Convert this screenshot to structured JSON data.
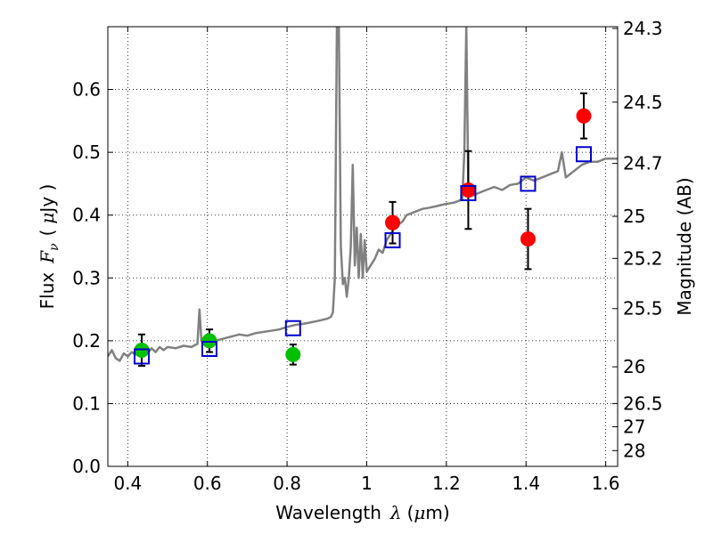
{
  "chart_data": {
    "type": "scatter",
    "xlabel": {
      "prefix": "Wavelength",
      "symbol": "λ",
      "open": "(",
      "unit_prefix": "μ",
      "unit_rest": "m)"
    },
    "ylabel": {
      "prefix": "Flux",
      "symbol": "F",
      "subscript": "ν",
      "open": "(",
      "unit_prefix": "μ",
      "unit_rest": "Jy )"
    },
    "y2label": "Magnitude (AB)",
    "xlim": [
      0.35,
      1.63
    ],
    "ylim": [
      0.0,
      0.7
    ],
    "grid": true,
    "x_ticks": [
      0.4,
      0.6,
      0.8,
      1.0,
      1.2,
      1.4,
      1.6
    ],
    "x_tick_labels": [
      "0.4",
      "0.6",
      "0.8",
      "1",
      "1.2",
      "1.4",
      "1.6"
    ],
    "y_ticks": [
      0.0,
      0.1,
      0.2,
      0.3,
      0.4,
      0.5,
      0.6
    ],
    "y_tick_labels": [
      "0.0",
      "0.1",
      "0.2",
      "0.3",
      "0.4",
      "0.5",
      "0.6"
    ],
    "y2_ticks": [
      {
        "label": "24.3",
        "flux": 0.6972
      },
      {
        "label": "24.5",
        "flux": 0.5799
      },
      {
        "label": "24.7",
        "flux": 0.4823
      },
      {
        "label": "25",
        "flux": 0.3981
      },
      {
        "label": "25.2",
        "flux": 0.3311
      },
      {
        "label": "25.5",
        "flux": 0.2512
      },
      {
        "label": "26",
        "flux": 0.1585
      },
      {
        "label": "26.5",
        "flux": 0.1
      },
      {
        "label": "27",
        "flux": 0.0631
      },
      {
        "label": "28",
        "flux": 0.0251
      }
    ],
    "series": [
      {
        "kind": "line",
        "color": "#808080",
        "x": [
          0.35,
          0.36,
          0.37,
          0.38,
          0.39,
          0.4,
          0.41,
          0.42,
          0.43,
          0.44,
          0.45,
          0.46,
          0.47,
          0.48,
          0.49,
          0.5,
          0.52,
          0.54,
          0.56,
          0.575,
          0.58,
          0.585,
          0.59,
          0.62,
          0.65,
          0.68,
          0.7,
          0.72,
          0.75,
          0.78,
          0.8,
          0.82,
          0.85,
          0.88,
          0.9,
          0.91,
          0.915,
          0.92,
          0.925,
          0.93,
          0.935,
          0.94,
          0.945,
          0.95,
          0.955,
          0.96,
          0.965,
          0.97,
          0.975,
          0.98,
          0.985,
          0.99,
          0.995,
          1.0,
          1.01,
          1.02,
          1.03,
          1.04,
          1.05,
          1.06,
          1.07,
          1.08,
          1.09,
          1.1,
          1.12,
          1.14,
          1.16,
          1.18,
          1.2,
          1.22,
          1.24,
          1.245,
          1.25,
          1.255,
          1.26,
          1.27,
          1.28,
          1.3,
          1.32,
          1.34,
          1.36,
          1.38,
          1.4,
          1.42,
          1.44,
          1.46,
          1.48,
          1.49,
          1.5,
          1.51,
          1.52,
          1.54,
          1.56,
          1.58,
          1.6,
          1.63
        ],
        "y": [
          0.175,
          0.185,
          0.172,
          0.168,
          0.18,
          0.175,
          0.182,
          0.178,
          0.185,
          0.19,
          0.18,
          0.188,
          0.182,
          0.19,
          0.185,
          0.19,
          0.188,
          0.192,
          0.19,
          0.195,
          0.25,
          0.2,
          0.198,
          0.2,
          0.205,
          0.21,
          0.208,
          0.212,
          0.215,
          0.218,
          0.222,
          0.225,
          0.228,
          0.232,
          0.235,
          0.238,
          0.245,
          0.3,
          0.7,
          0.7,
          0.35,
          0.29,
          0.3,
          0.27,
          0.3,
          0.35,
          0.48,
          0.32,
          0.38,
          0.3,
          0.37,
          0.3,
          0.36,
          0.31,
          0.32,
          0.33,
          0.345,
          0.34,
          0.36,
          0.37,
          0.38,
          0.385,
          0.39,
          0.4,
          0.405,
          0.41,
          0.412,
          0.415,
          0.418,
          0.42,
          0.425,
          0.5,
          0.7,
          0.45,
          0.43,
          0.432,
          0.435,
          0.44,
          0.445,
          0.44,
          0.448,
          0.45,
          0.46,
          0.455,
          0.46,
          0.465,
          0.47,
          0.5,
          0.46,
          0.465,
          0.47,
          0.48,
          0.485,
          0.485,
          0.49,
          0.49
        ]
      },
      {
        "kind": "scatter",
        "marker": "circle",
        "color": "#00c000",
        "points": [
          {
            "x": 0.435,
            "y": 0.185,
            "err": 0.025
          },
          {
            "x": 0.605,
            "y": 0.2,
            "err": 0.018
          },
          {
            "x": 0.815,
            "y": 0.178,
            "err": 0.016
          }
        ]
      },
      {
        "kind": "scatter",
        "marker": "circle",
        "color": "#ff0000",
        "points": [
          {
            "x": 1.065,
            "y": 0.388,
            "err": 0.033
          },
          {
            "x": 1.255,
            "y": 0.44,
            "err": 0.062
          },
          {
            "x": 1.405,
            "y": 0.362,
            "err": 0.048
          },
          {
            "x": 1.545,
            "y": 0.558,
            "err": 0.036
          }
        ]
      },
      {
        "kind": "scatter",
        "marker": "open-square",
        "color": "#0000cc",
        "points": [
          {
            "x": 0.435,
            "y": 0.175
          },
          {
            "x": 0.605,
            "y": 0.187
          },
          {
            "x": 0.815,
            "y": 0.22
          },
          {
            "x": 1.065,
            "y": 0.36
          },
          {
            "x": 1.255,
            "y": 0.435
          },
          {
            "x": 1.405,
            "y": 0.45
          },
          {
            "x": 1.545,
            "y": 0.497
          }
        ]
      }
    ]
  }
}
